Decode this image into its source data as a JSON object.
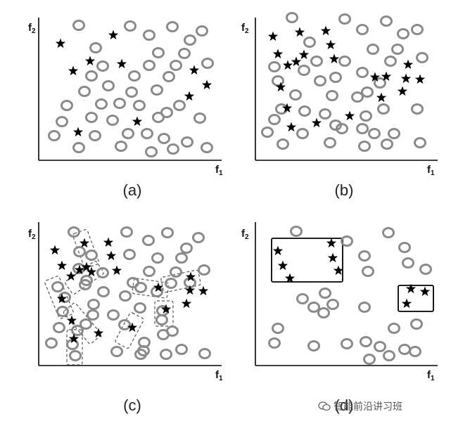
{
  "panels": [
    {
      "id": "a",
      "caption": "(a)",
      "x_label": "f",
      "x_label_sub": "1",
      "y_label": "f",
      "y_label_sub": "2",
      "circles": [
        [
          112,
          36
        ],
        [
          185,
          37
        ],
        [
          245,
          38
        ],
        [
          212,
          50
        ],
        [
          287,
          44
        ],
        [
          270,
          57
        ],
        [
          136,
          68
        ],
        [
          225,
          75
        ],
        [
          262,
          76
        ],
        [
          146,
          94
        ],
        [
          212,
          93
        ],
        [
          250,
          93
        ],
        [
          295,
          90
        ],
        [
          130,
          108
        ],
        [
          191,
          108
        ],
        [
          240,
          109
        ],
        [
          120,
          130
        ],
        [
          154,
          122
        ],
        [
          223,
          128
        ],
        [
          187,
          131
        ],
        [
          95,
          150
        ],
        [
          144,
          148
        ],
        [
          170,
          147
        ],
        [
          255,
          150
        ],
        [
          198,
          150
        ],
        [
          130,
          167
        ],
        [
          225,
          167
        ],
        [
          88,
          173
        ],
        [
          160,
          171
        ],
        [
          237,
          160
        ],
        [
          284,
          168
        ],
        [
          182,
          190
        ],
        [
          209,
          190
        ],
        [
          77,
          193
        ],
        [
          135,
          193
        ],
        [
          233,
          197
        ],
        [
          266,
          202
        ],
        [
          112,
          210
        ],
        [
          172,
          208
        ],
        [
          246,
          212
        ],
        [
          294,
          210
        ],
        [
          215,
          216
        ]
      ],
      "stars": [
        [
          86,
          62
        ],
        [
          161,
          50
        ],
        [
          128,
          87
        ],
        [
          104,
          101
        ],
        [
          173,
          91
        ],
        [
          276,
          100
        ],
        [
          294,
          121
        ],
        [
          269,
          137
        ],
        [
          195,
          173
        ],
        [
          111,
          188
        ]
      ],
      "dashed_boxes": [],
      "solid_boxes": []
    },
    {
      "id": "b",
      "caption": "(b)",
      "x_label": "f",
      "x_label_sub": "1",
      "y_label": "f",
      "y_label_sub": "2",
      "circles": [
        [
          415,
          25
        ],
        [
          490,
          27
        ],
        [
          549,
          30
        ],
        [
          515,
          42
        ],
        [
          573,
          48
        ],
        [
          593,
          42
        ],
        [
          440,
          60
        ],
        [
          530,
          70
        ],
        [
          565,
          70
        ],
        [
          450,
          87
        ],
        [
          600,
          82
        ],
        [
          390,
          95
        ],
        [
          490,
          87
        ],
        [
          555,
          87
        ],
        [
          432,
          100
        ],
        [
          515,
          103
        ],
        [
          477,
          110
        ],
        [
          395,
          115
        ],
        [
          455,
          115
        ],
        [
          540,
          118
        ],
        [
          522,
          131
        ],
        [
          420,
          135
        ],
        [
          472,
          136
        ],
        [
          508,
          138
        ],
        [
          400,
          155
        ],
        [
          433,
          158
        ],
        [
          462,
          162
        ],
        [
          545,
          155
        ],
        [
          593,
          155
        ],
        [
          390,
          170
        ],
        [
          520,
          165
        ],
        [
          477,
          178
        ],
        [
          380,
          188
        ],
        [
          430,
          190
        ],
        [
          486,
          183
        ],
        [
          515,
          183
        ],
        [
          560,
          190
        ],
        [
          532,
          190
        ],
        [
          402,
          205
        ],
        [
          469,
          203
        ],
        [
          518,
          208
        ],
        [
          550,
          205
        ],
        [
          597,
          203
        ]
      ],
      "stars": [
        [
          388,
          52
        ],
        [
          426,
          46
        ],
        [
          463,
          44
        ],
        [
          470,
          64
        ],
        [
          395,
          77
        ],
        [
          409,
          93
        ],
        [
          421,
          88
        ],
        [
          432,
          78
        ],
        [
          475,
          84
        ],
        [
          580,
          92
        ],
        [
          533,
          110
        ],
        [
          549,
          109
        ],
        [
          577,
          112
        ],
        [
          597,
          113
        ],
        [
          399,
          124
        ],
        [
          572,
          130
        ],
        [
          542,
          139
        ],
        [
          408,
          154
        ],
        [
          497,
          165
        ],
        [
          450,
          175
        ],
        [
          414,
          181
        ]
      ],
      "dashed_boxes": [],
      "solid_boxes": []
    },
    {
      "id": "c",
      "caption": "(c)",
      "x_label": "f",
      "x_label_sub": "1",
      "y_label": "f",
      "y_label_sub": "2",
      "circles": [
        [
          105,
          330
        ],
        [
          180,
          330
        ],
        [
          238,
          331
        ],
        [
          211,
          342
        ],
        [
          282,
          338
        ],
        [
          265,
          353
        ],
        [
          113,
          358
        ],
        [
          130,
          363
        ],
        [
          184,
          362
        ],
        [
          224,
          367
        ],
        [
          258,
          367
        ],
        [
          112,
          382
        ],
        [
          146,
          388
        ],
        [
          212,
          386
        ],
        [
          250,
          387
        ],
        [
          290,
          384
        ],
        [
          123,
          399
        ],
        [
          82,
          408
        ],
        [
          121,
          405
        ],
        [
          189,
          402
        ],
        [
          200,
          409
        ],
        [
          243,
          403
        ],
        [
          270,
          402
        ],
        [
          147,
          415
        ],
        [
          223,
          415
        ],
        [
          92,
          423
        ],
        [
          178,
          421
        ],
        [
          133,
          433
        ],
        [
          231,
          442
        ],
        [
          89,
          443
        ],
        [
          132,
          448
        ],
        [
          161,
          448
        ],
        [
          199,
          438
        ],
        [
          230,
          455
        ],
        [
          122,
          461
        ],
        [
          177,
          462
        ],
        [
          245,
          471
        ],
        [
          84,
          466
        ],
        [
          232,
          476
        ],
        [
          103,
          490
        ],
        [
          205,
          487
        ],
        [
          73,
          488
        ],
        [
          258,
          497
        ],
        [
          166,
          500
        ],
        [
          236,
          504
        ],
        [
          200,
          504
        ],
        [
          291,
          503
        ],
        [
          107,
          506
        ],
        [
          110,
          470
        ],
        [
          204,
          499
        ]
      ],
      "stars": [
        [
          78,
          356
        ],
        [
          120,
          346
        ],
        [
          154,
          345
        ],
        [
          158,
          364
        ],
        [
          88,
          378
        ],
        [
          123,
          380
        ],
        [
          113,
          384
        ],
        [
          130,
          387
        ],
        [
          166,
          385
        ],
        [
          101,
          393
        ],
        [
          271,
          394
        ],
        [
          225,
          409
        ],
        [
          270,
          413
        ],
        [
          289,
          414
        ],
        [
          88,
          425
        ],
        [
          236,
          440
        ],
        [
          265,
          432
        ],
        [
          102,
          456
        ],
        [
          140,
          474
        ],
        [
          188,
          466
        ],
        [
          105,
          482
        ]
      ],
      "dashed_boxes": [
        {
          "cx": 122,
          "cy": 354,
          "w": 22,
          "h": 52,
          "rot": -20
        },
        {
          "cx": 120,
          "cy": 395,
          "w": 54,
          "h": 22,
          "rot": -35
        },
        {
          "cx": 84,
          "cy": 423,
          "w": 22,
          "h": 58,
          "rot": -22
        },
        {
          "cx": 117,
          "cy": 460,
          "w": 22,
          "h": 60,
          "rot": -40
        },
        {
          "cx": 106,
          "cy": 494,
          "w": 22,
          "h": 50,
          "rot": 0
        },
        {
          "cx": 184,
          "cy": 470,
          "w": 22,
          "h": 48,
          "rot": 28
        },
        {
          "cx": 214,
          "cy": 410,
          "w": 50,
          "h": 22,
          "rot": 8
        },
        {
          "cx": 257,
          "cy": 400,
          "w": 54,
          "h": 22,
          "rot": -12
        },
        {
          "cx": 233,
          "cy": 446,
          "w": 26,
          "h": 36,
          "rot": 0
        }
      ],
      "solid_boxes": []
    },
    {
      "id": "d",
      "caption": "(d)",
      "x_label": "f",
      "x_label_sub": "1",
      "y_label": "f",
      "y_label_sub": "2",
      "circles": [
        [
          421,
          329
        ],
        [
          552,
          331
        ],
        [
          493,
          343
        ],
        [
          575,
          352
        ],
        [
          518,
          364
        ],
        [
          523,
          386
        ],
        [
          580,
          374
        ],
        [
          605,
          383
        ],
        [
          462,
          417
        ],
        [
          430,
          425
        ],
        [
          446,
          437
        ],
        [
          473,
          433
        ],
        [
          518,
          437
        ],
        [
          460,
          445
        ],
        [
          395,
          467
        ],
        [
          560,
          467
        ],
        [
          592,
          461
        ],
        [
          390,
          488
        ],
        [
          446,
          492
        ],
        [
          493,
          489
        ],
        [
          520,
          486
        ],
        [
          540,
          493
        ],
        [
          575,
          497
        ],
        [
          553,
          506
        ],
        [
          590,
          500
        ],
        [
          525,
          511
        ]
      ],
      "stars": [
        [
          395,
          357
        ],
        [
          471,
          346
        ],
        [
          473,
          367
        ],
        [
          402,
          378
        ],
        [
          481,
          385
        ],
        [
          412,
          396
        ],
        [
          584,
          411
        ],
        [
          604,
          415
        ],
        [
          578,
          432
        ]
      ],
      "dashed_boxes": [],
      "solid_boxes": [
        {
          "x": 386,
          "y": 339,
          "w": 101,
          "h": 62
        },
        {
          "x": 566,
          "y": 406,
          "w": 50,
          "h": 37
        }
      ]
    }
  ],
  "watermark": "智能前沿讲习班"
}
